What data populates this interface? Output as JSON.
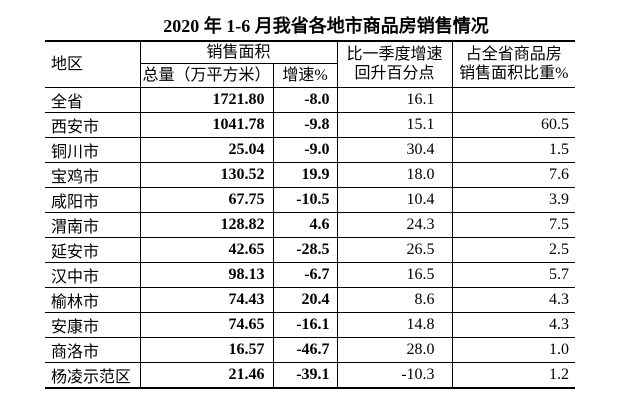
{
  "title": "2020 年 1-6 月我省各地市商品房销售情况",
  "header": {
    "region": "地区",
    "sales_area": "销售面积",
    "total": "总量（万平方米）",
    "growth": "增速%",
    "vs_q1_line1": "比一季度增速",
    "vs_q1_line2": "回升百分点",
    "share_line1": "占全省商品房",
    "share_line2": "销售面积比重%"
  },
  "chart_data": {
    "type": "table",
    "title": "2020 年 1-6 月我省各地市商品房销售情况",
    "column_groups": [
      {
        "label": "销售面积",
        "children": [
          "总量（万平方米）",
          "增速%"
        ]
      }
    ],
    "columns": [
      "地区",
      "总量（万平方米）",
      "增速%",
      "比一季度增速回升百分点",
      "占全省商品房销售面积比重%"
    ],
    "rows": [
      [
        "全省",
        "1721.80",
        "-8.0",
        "16.1",
        ""
      ],
      [
        "西安市",
        "1041.78",
        "-9.8",
        "15.1",
        "60.5"
      ],
      [
        "铜川市",
        "25.04",
        "-9.0",
        "30.4",
        "1.5"
      ],
      [
        "宝鸡市",
        "130.52",
        "19.9",
        "18.0",
        "7.6"
      ],
      [
        "咸阳市",
        "67.75",
        "-10.5",
        "10.4",
        "3.9"
      ],
      [
        "渭南市",
        "128.82",
        "4.6",
        "24.3",
        "7.5"
      ],
      [
        "延安市",
        "42.65",
        "-28.5",
        "26.5",
        "2.5"
      ],
      [
        "汉中市",
        "98.13",
        "-6.7",
        "16.5",
        "5.7"
      ],
      [
        "榆林市",
        "74.43",
        "20.4",
        "8.6",
        "4.3"
      ],
      [
        "安康市",
        "74.65",
        "-16.1",
        "14.8",
        "4.3"
      ],
      [
        "商洛市",
        "16.57",
        "-46.7",
        "28.0",
        "1.0"
      ],
      [
        "杨凌示范区",
        "21.46",
        "-39.1",
        "-10.3",
        "1.2"
      ]
    ]
  },
  "colors": {
    "background": "#ffffff",
    "text": "#000000",
    "border": "#000000"
  }
}
